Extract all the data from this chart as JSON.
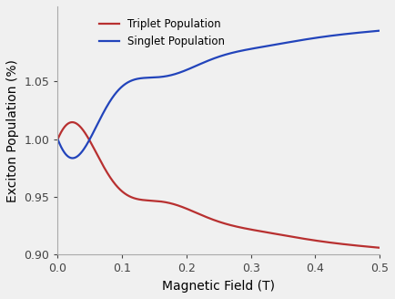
{
  "title": "",
  "xlabel": "Magnetic Field (T)",
  "ylabel": "Exciton Population (%)",
  "xlim": [
    0.0,
    0.5
  ],
  "ylim": [
    0.9,
    1.115
  ],
  "yticks": [
    0.9,
    0.95,
    1.0,
    1.05
  ],
  "xticks": [
    0.0,
    0.1,
    0.2,
    0.3,
    0.4,
    0.5
  ],
  "triplet_color": "#b83030",
  "singlet_color": "#2244bb",
  "legend_entries": [
    "Triplet Population",
    "Singlet Population"
  ],
  "background_color": "#f0f0f0",
  "linewidth": 1.6
}
